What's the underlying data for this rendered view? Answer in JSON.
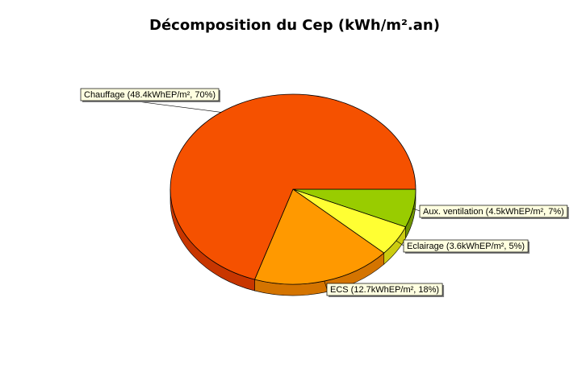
{
  "chart_data": {
    "type": "pie",
    "title": "Décomposition du Cep (kWh/m².an)",
    "start_angle_deg": 0,
    "direction": "clockwise",
    "three_d": true,
    "slices": [
      {
        "name": "Aux. ventilation",
        "value": 4.5,
        "percent": 7,
        "label": "Aux. ventilation (4.5kWhEP/m², 7%)",
        "color": "#99cc00",
        "side_color": "#6f9400"
      },
      {
        "name": "Eclairage",
        "value": 3.6,
        "percent": 5,
        "label": "Eclairage (3.6kWhEP/m², 5%)",
        "color": "#ffff33",
        "side_color": "#cccc10"
      },
      {
        "name": "ECS",
        "value": 12.7,
        "percent": 18,
        "label": "ECS (12.7kWhEP/m², 18%)",
        "color": "#ff9900",
        "side_color": "#d47400"
      },
      {
        "name": "Chauffage",
        "value": 48.4,
        "percent": 70,
        "label": "Chauffage (48.4kWhEP/m², 70%)",
        "color": "#f55100",
        "side_color": "#c83600"
      }
    ]
  }
}
